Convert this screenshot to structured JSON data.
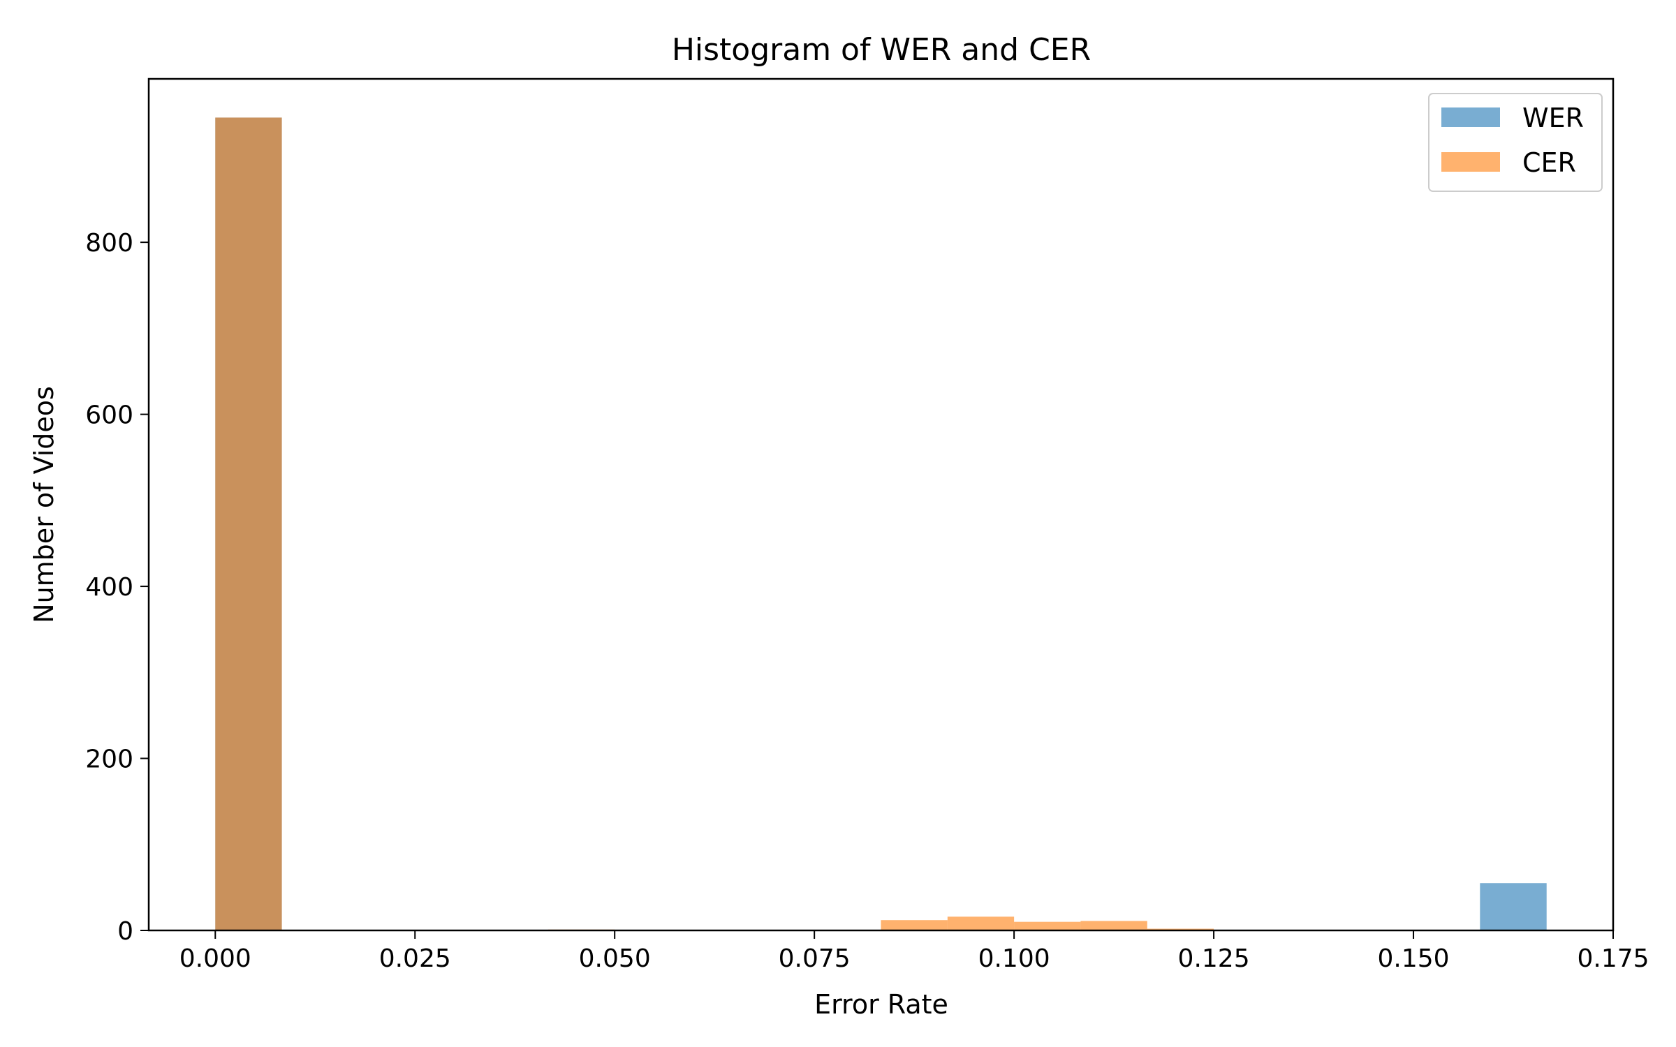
{
  "chart_data": {
    "type": "bar",
    "title": "Histogram of WER and CER",
    "xlabel": "Error Rate",
    "ylabel": "Number of Videos",
    "xlim": [
      -0.00833,
      0.175
    ],
    "ylim": [
      0,
      990
    ],
    "xticks": [
      "0.000",
      "0.025",
      "0.050",
      "0.075",
      "0.100",
      "0.125",
      "0.150",
      "0.175"
    ],
    "yticks": [
      "0",
      "200",
      "400",
      "600",
      "800"
    ],
    "grid": false,
    "legend_position": "top-right",
    "series": [
      {
        "name": "WER",
        "color": "#1f77b4",
        "opacity": 0.6,
        "bins": [
          {
            "x0": 0.0,
            "x1": 0.00833,
            "count": 945
          },
          {
            "x0": 0.15833,
            "x1": 0.16667,
            "count": 55
          }
        ]
      },
      {
        "name": "CER",
        "color": "#ff7f0e",
        "opacity": 0.6,
        "bins": [
          {
            "x0": 0.0,
            "x1": 0.00833,
            "count": 945
          },
          {
            "x0": 0.04167,
            "x1": 0.05,
            "count": 1
          },
          {
            "x0": 0.08333,
            "x1": 0.09167,
            "count": 12
          },
          {
            "x0": 0.09167,
            "x1": 0.1,
            "count": 16
          },
          {
            "x0": 0.1,
            "x1": 0.10833,
            "count": 10
          },
          {
            "x0": 0.10833,
            "x1": 0.11667,
            "count": 11
          },
          {
            "x0": 0.11667,
            "x1": 0.125,
            "count": 2
          }
        ]
      }
    ]
  }
}
